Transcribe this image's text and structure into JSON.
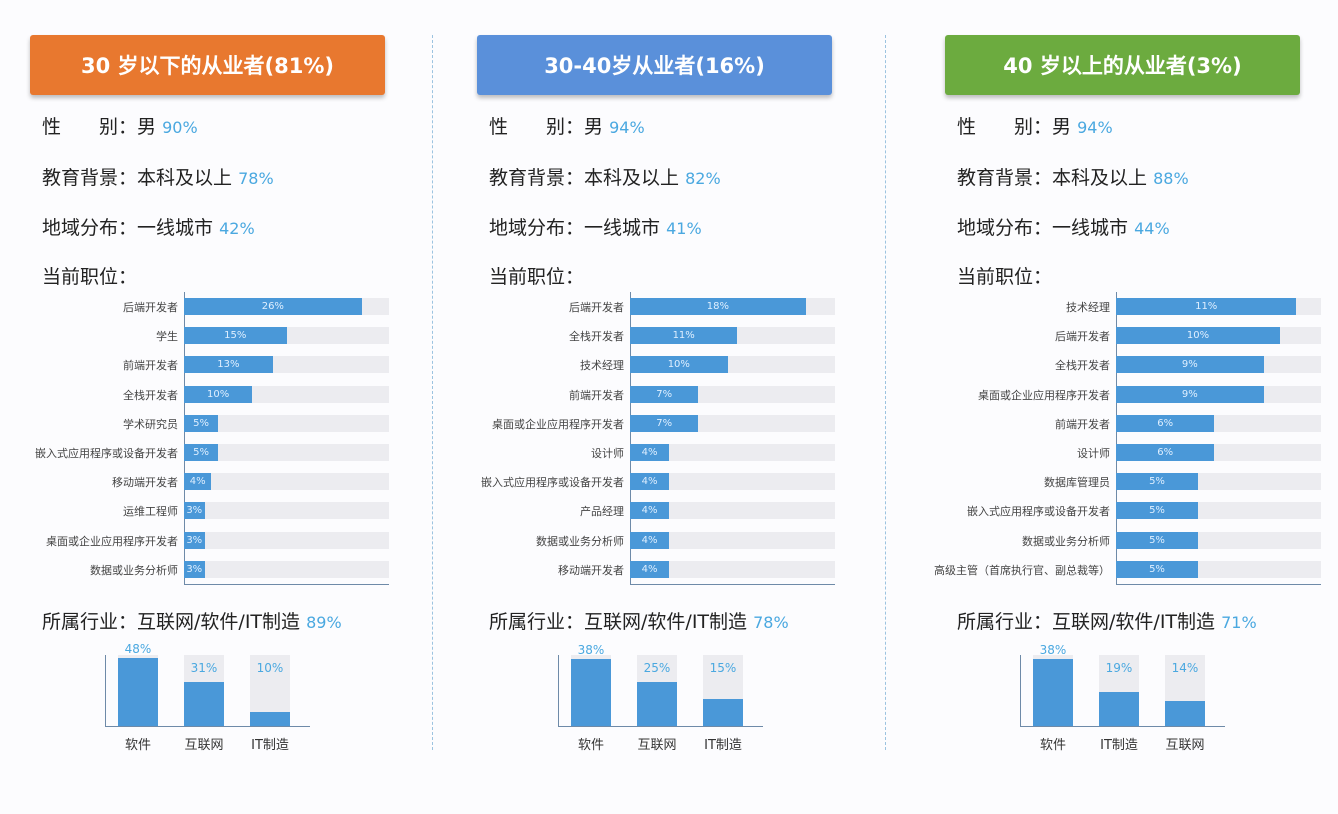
{
  "colors": {
    "orange": "#e8782f",
    "blue": "#5a90da",
    "green": "#6cab3f",
    "bar": "#4a98d8",
    "track": "#ececf0",
    "percent": "#4aa8e0"
  },
  "labels": {
    "gender": "性　　别：",
    "edu": "教育背景：",
    "region": "地域分布：",
    "position": "当前职位：",
    "industry": "所属行业："
  },
  "columns": [
    {
      "title": "30 岁以下的从业者(81%)",
      "color": "#e8782f",
      "gender_value": "男",
      "gender_pct": "90%",
      "edu_value": "本科及以上",
      "edu_pct": "78%",
      "region_value": "一线城市",
      "region_pct": "42%",
      "industry_value": "互联网/软件/IT制造",
      "industry_pct": "89%"
    },
    {
      "title": "30-40岁从业者(16%)",
      "color": "#5a90da",
      "gender_value": "男",
      "gender_pct": "94%",
      "edu_value": "本科及以上",
      "edu_pct": "82%",
      "region_value": "一线城市",
      "region_pct": "41%",
      "industry_value": "互联网/软件/IT制造",
      "industry_pct": "78%"
    },
    {
      "title": "40 岁以上的从业者(3%)",
      "color": "#6cab3f",
      "gender_value": "男",
      "gender_pct": "94%",
      "edu_value": "本科及以上",
      "edu_pct": "88%",
      "region_value": "一线城市",
      "region_pct": "44%",
      "industry_value": "互联网/软件/IT制造",
      "industry_pct": "71%"
    }
  ],
  "chart_data": [
    {
      "type": "bar",
      "orientation": "horizontal",
      "xlim": [
        0,
        30
      ],
      "grid": false,
      "categories": [
        "后端开发者",
        "学生",
        "前端开发者",
        "全栈开发者",
        "学术研究员",
        "嵌入式应用程序或设备开发者",
        "移动端开发者",
        "运维工程师",
        "桌面或企业应用程序开发者",
        "数据或业务分析师"
      ],
      "values": [
        26,
        15,
        13,
        10,
        5,
        5,
        4,
        3,
        3,
        3
      ],
      "labels": [
        "26%",
        "15%",
        "13%",
        "10%",
        "5%",
        "5%",
        "4%",
        "3%",
        "3%",
        "3%"
      ]
    },
    {
      "type": "bar",
      "orientation": "horizontal",
      "xlim": [
        0,
        21
      ],
      "grid": false,
      "categories": [
        "后端开发者",
        "全栈开发者",
        "技术经理",
        "前端开发者",
        "桌面或企业应用程序开发者",
        "设计师",
        "嵌入式应用程序或设备开发者",
        "产品经理",
        "数据或业务分析师",
        "移动端开发者"
      ],
      "values": [
        18,
        11,
        10,
        7,
        7,
        4,
        4,
        4,
        4,
        4
      ],
      "labels": [
        "18%",
        "11%",
        "10%",
        "7%",
        "7%",
        "4%",
        "4%",
        "4%",
        "4%",
        "4%"
      ]
    },
    {
      "type": "bar",
      "orientation": "horizontal",
      "xlim": [
        0,
        12.5
      ],
      "grid": false,
      "categories": [
        "技术经理",
        "后端开发者",
        "全栈开发者",
        "桌面或企业应用程序开发者",
        "前端开发者",
        "设计师",
        "数据库管理员",
        "嵌入式应用程序或设备开发者",
        "数据或业务分析师",
        "高级主管（首席执行官、副总裁等）"
      ],
      "values": [
        11,
        10,
        9,
        9,
        6,
        6,
        5,
        5,
        5,
        5
      ],
      "labels": [
        "11%",
        "10%",
        "9%",
        "9%",
        "6%",
        "6%",
        "5%",
        "5%",
        "5%",
        "5%"
      ]
    },
    {
      "type": "bar",
      "orientation": "vertical",
      "ylim": [
        0,
        50
      ],
      "categories": [
        "软件",
        "互联网",
        "IT制造"
      ],
      "values": [
        48,
        31,
        10
      ],
      "labels": [
        "48%",
        "31%",
        "10%"
      ]
    },
    {
      "type": "bar",
      "orientation": "vertical",
      "ylim": [
        0,
        40
      ],
      "categories": [
        "软件",
        "互联网",
        "IT制造"
      ],
      "values": [
        38,
        25,
        15
      ],
      "labels": [
        "38%",
        "25%",
        "15%"
      ]
    },
    {
      "type": "bar",
      "orientation": "vertical",
      "ylim": [
        0,
        40
      ],
      "categories": [
        "软件",
        "IT制造",
        "互联网"
      ],
      "values": [
        38,
        19,
        14
      ],
      "labels": [
        "38%",
        "19%",
        "14%"
      ]
    }
  ]
}
